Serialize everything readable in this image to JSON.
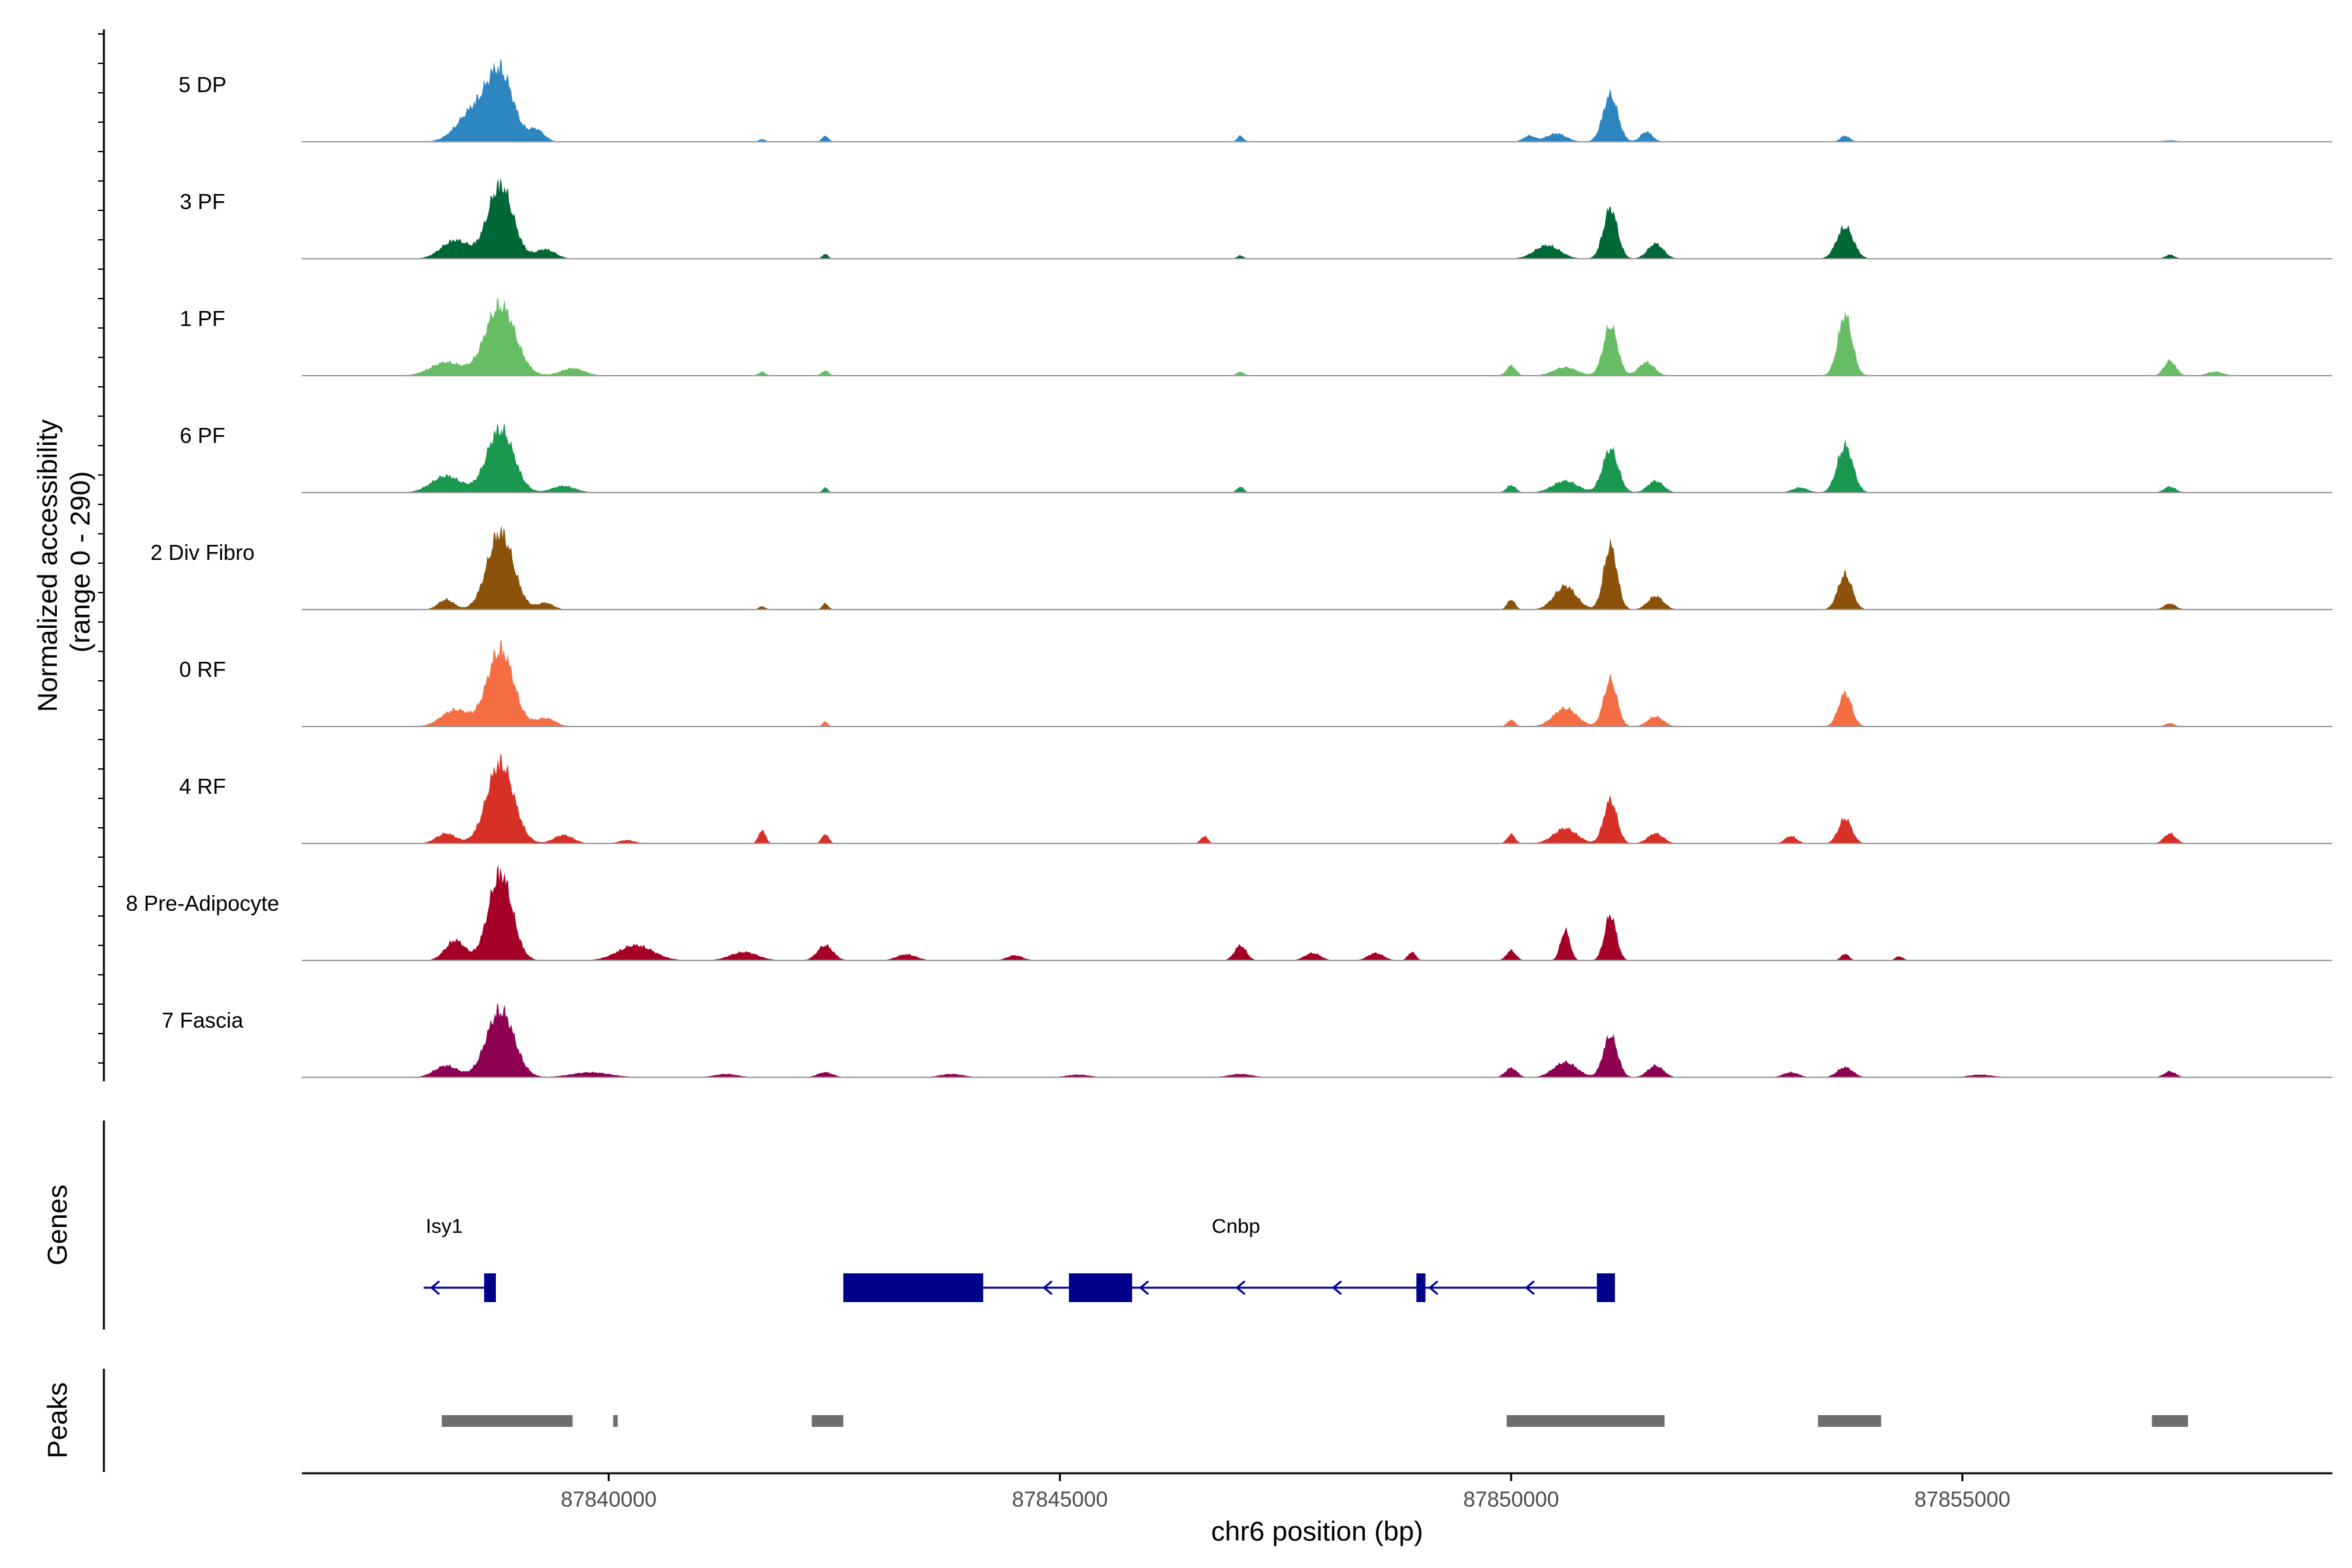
{
  "chart_data": {
    "type": "area",
    "title": "",
    "ylabel": "Normalized accessibility\n(range 0 - 290)",
    "ylabel_lines": [
      "Normalized accessibility",
      "(range 0 - 290)"
    ],
    "xlabel": "chr6 position (bp)",
    "xlim": [
      87836600,
      87859100
    ],
    "ylim": [
      0,
      290
    ],
    "x_ticks": [
      87840000,
      87845000,
      87850000,
      87855000
    ],
    "x_tick_labels": [
      "87840000",
      "87845000",
      "87850000",
      "87855000"
    ],
    "series": [
      {
        "name": "5 DP",
        "color": "#2E86C1",
        "peaks": [
          [
            87838800,
            200,
            330
          ],
          [
            87838500,
            90,
            400
          ],
          [
            87839200,
            35,
            200
          ],
          [
            87842400,
            18,
            80
          ],
          [
            87841700,
            8,
            80
          ],
          [
            87847000,
            18,
            80
          ],
          [
            87850500,
            25,
            250
          ],
          [
            87850200,
            18,
            150
          ],
          [
            87851100,
            140,
            190
          ],
          [
            87851500,
            30,
            150
          ],
          [
            87853700,
            18,
            120
          ],
          [
            87857300,
            4,
            200
          ]
        ]
      },
      {
        "name": "3 PF",
        "color": "#006837",
        "peaks": [
          [
            87838800,
            220,
            320
          ],
          [
            87838300,
            55,
            350
          ],
          [
            87839300,
            28,
            250
          ],
          [
            87842400,
            15,
            70
          ],
          [
            87847000,
            10,
            80
          ],
          [
            87850400,
            40,
            320
          ],
          [
            87851100,
            150,
            180
          ],
          [
            87851600,
            45,
            200
          ],
          [
            87853700,
            95,
            210
          ],
          [
            87857300,
            12,
            120
          ]
        ]
      },
      {
        "name": "1 PF",
        "color": "#66BD63",
        "peaks": [
          [
            87838800,
            210,
            380
          ],
          [
            87838200,
            40,
            400
          ],
          [
            87839600,
            22,
            300
          ],
          [
            87841700,
            12,
            90
          ],
          [
            87842400,
            15,
            90
          ],
          [
            87847000,
            12,
            90
          ],
          [
            87850000,
            30,
            120
          ],
          [
            87850600,
            25,
            300
          ],
          [
            87851100,
            150,
            180
          ],
          [
            87851500,
            40,
            200
          ],
          [
            87853700,
            180,
            180
          ],
          [
            87857300,
            45,
            150
          ],
          [
            87857800,
            12,
            200
          ]
        ]
      },
      {
        "name": "6 PF",
        "color": "#1A9850",
        "peaks": [
          [
            87838800,
            190,
            340
          ],
          [
            87838200,
            50,
            380
          ],
          [
            87839500,
            20,
            300
          ],
          [
            87842400,
            15,
            70
          ],
          [
            87847000,
            18,
            90
          ],
          [
            87850000,
            22,
            120
          ],
          [
            87850600,
            35,
            320
          ],
          [
            87851100,
            130,
            200
          ],
          [
            87851600,
            35,
            200
          ],
          [
            87853700,
            140,
            200
          ],
          [
            87853200,
            15,
            200
          ],
          [
            87857300,
            18,
            150
          ]
        ]
      },
      {
        "name": "2 Div Fibro",
        "color": "#8C510A",
        "peaks": [
          [
            87838800,
            230,
            330
          ],
          [
            87838200,
            30,
            200
          ],
          [
            87839300,
            20,
            200
          ],
          [
            87841700,
            10,
            80
          ],
          [
            87842400,
            18,
            80
          ],
          [
            87850000,
            30,
            100
          ],
          [
            87850600,
            70,
            280
          ],
          [
            87851100,
            190,
            170
          ],
          [
            87851600,
            40,
            200
          ],
          [
            87853700,
            105,
            180
          ],
          [
            87857300,
            18,
            150
          ]
        ]
      },
      {
        "name": "0 RF",
        "color": "#F46D43",
        "peaks": [
          [
            87838800,
            230,
            330
          ],
          [
            87838300,
            50,
            350
          ],
          [
            87839300,
            25,
            250
          ],
          [
            87842400,
            15,
            70
          ],
          [
            87850000,
            20,
            100
          ],
          [
            87850600,
            55,
            300
          ],
          [
            87851100,
            140,
            170
          ],
          [
            87851600,
            30,
            200
          ],
          [
            87853700,
            100,
            170
          ],
          [
            87857300,
            10,
            120
          ]
        ]
      },
      {
        "name": "4 RF",
        "color": "#D73027",
        "peaks": [
          [
            87838800,
            240,
            340
          ],
          [
            87838200,
            30,
            250
          ],
          [
            87839500,
            25,
            250
          ],
          [
            87840200,
            10,
            200
          ],
          [
            87841700,
            40,
            90
          ],
          [
            87842400,
            28,
            90
          ],
          [
            87846600,
            22,
            90
          ],
          [
            87850000,
            28,
            100
          ],
          [
            87850600,
            45,
            300
          ],
          [
            87851100,
            130,
            170
          ],
          [
            87851600,
            30,
            200
          ],
          [
            87853100,
            22,
            150
          ],
          [
            87853700,
            75,
            170
          ],
          [
            87857300,
            30,
            150
          ]
        ]
      },
      {
        "name": "8 Pre-Adipocyte",
        "color": "#A50026",
        "peaks": [
          [
            87838800,
            260,
            300
          ],
          [
            87838300,
            60,
            250
          ],
          [
            87840300,
            45,
            450
          ],
          [
            87841500,
            25,
            350
          ],
          [
            87842400,
            45,
            200
          ],
          [
            87843300,
            18,
            250
          ],
          [
            87844500,
            15,
            200
          ],
          [
            87847000,
            45,
            150
          ],
          [
            87847800,
            22,
            200
          ],
          [
            87848500,
            22,
            200
          ],
          [
            87848900,
            25,
            100
          ],
          [
            87850000,
            30,
            120
          ],
          [
            87850600,
            90,
            120
          ],
          [
            87851100,
            135,
            150
          ],
          [
            87853700,
            20,
            100
          ],
          [
            87854300,
            12,
            100
          ]
        ]
      },
      {
        "name": "7 Fascia",
        "color": "#8E0152",
        "peaks": [
          [
            87838800,
            200,
            350
          ],
          [
            87838200,
            35,
            300
          ],
          [
            87839800,
            15,
            500
          ],
          [
            87841300,
            10,
            300
          ],
          [
            87842400,
            15,
            200
          ],
          [
            87843800,
            10,
            300
          ],
          [
            87845200,
            8,
            300
          ],
          [
            87847000,
            10,
            300
          ],
          [
            87850000,
            28,
            150
          ],
          [
            87850600,
            45,
            300
          ],
          [
            87851100,
            125,
            180
          ],
          [
            87851600,
            35,
            200
          ],
          [
            87853100,
            15,
            200
          ],
          [
            87853700,
            30,
            200
          ],
          [
            87855200,
            8,
            300
          ],
          [
            87857300,
            18,
            150
          ]
        ]
      }
    ],
    "genes": [
      {
        "name": "Isy1",
        "strand": "-",
        "start": 87837950,
        "end": 87838750,
        "exons": [
          [
            87838620,
            87838750
          ]
        ]
      },
      {
        "name": "Cnbp",
        "strand": "-",
        "start": 87842600,
        "end": 87851150,
        "exons": [
          [
            87842600,
            87844150
          ],
          [
            87845100,
            87845800
          ],
          [
            87848950,
            87849050
          ],
          [
            87850950,
            87851150
          ]
        ]
      }
    ],
    "peaks": [
      [
        87838150,
        87839600
      ],
      [
        87840050,
        87840100
      ],
      [
        87842250,
        87842600
      ],
      [
        87849950,
        87851700
      ],
      [
        87853400,
        87854100
      ],
      [
        87857100,
        87857500
      ]
    ],
    "panels": [
      "Genes",
      "Peaks"
    ],
    "colors": {
      "gene": "#00008B",
      "peak": "#6E6E6E",
      "baseline": "#9A9A9A",
      "axis": "#000000"
    }
  }
}
